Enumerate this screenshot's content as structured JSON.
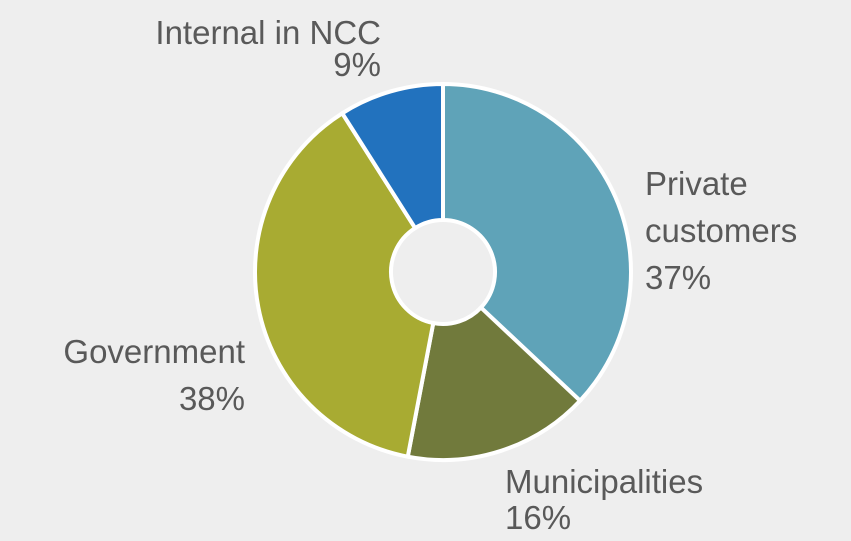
{
  "chart_data": {
    "type": "donut",
    "categories": [
      "Private customers",
      "Municipalities",
      "Government",
      "Internal in NCC"
    ],
    "values": [
      37,
      16,
      38,
      9
    ],
    "value_labels": [
      "37%",
      "16%",
      "38%",
      "9%"
    ],
    "colors": [
      "#5fa3b8",
      "#717a3c",
      "#a8ab32",
      "#2272be"
    ]
  }
}
